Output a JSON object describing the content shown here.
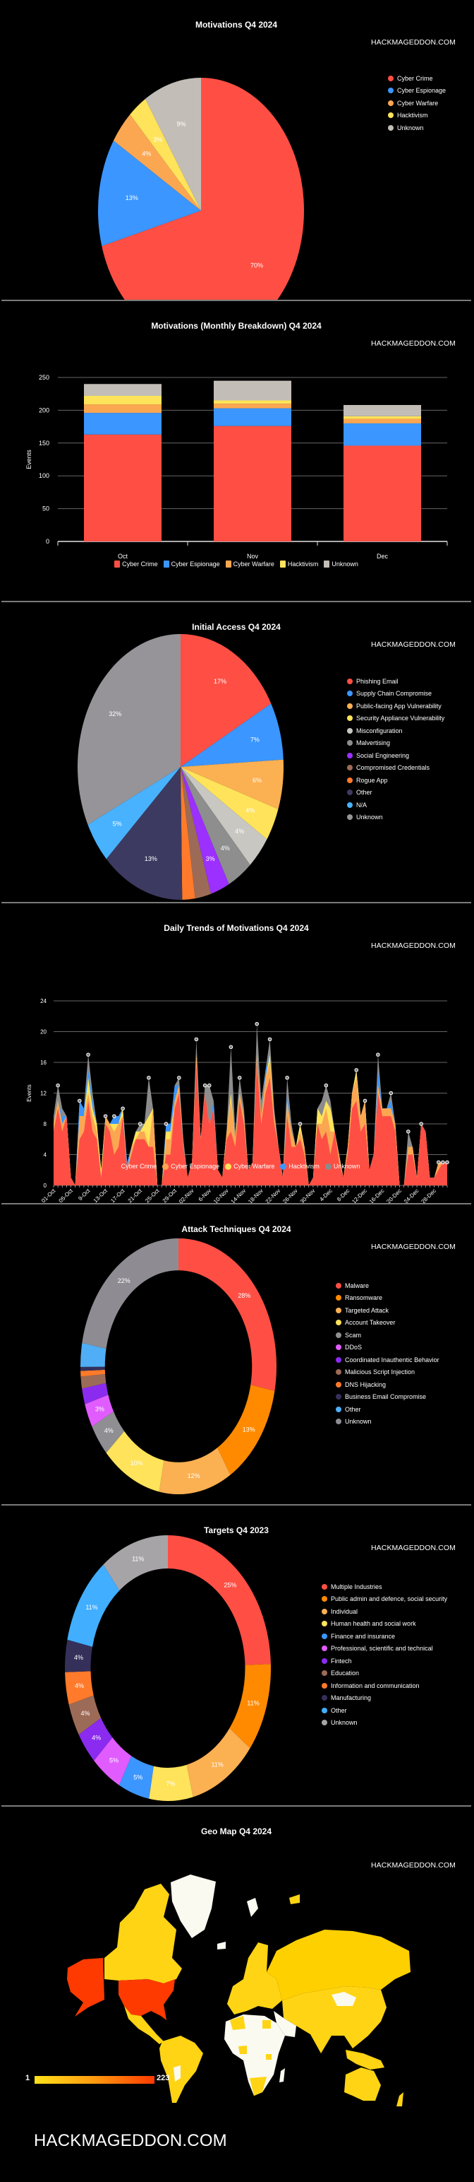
{
  "watermark": "HACKMAGEDDON.COM",
  "footer": {
    "brand": "HACKMAGEDDON.COM"
  },
  "chart_data": [
    {
      "id": "motivations",
      "type": "pie",
      "title": "Motivations Q4 2024",
      "legend_position": "right",
      "labels": [
        "Cyber Crime",
        "Cyber Espionage",
        "Cyber Warfare",
        "Hacktivism",
        "Unknown"
      ],
      "values": [
        70,
        13,
        4,
        3,
        9
      ],
      "value_labels": [
        "70%",
        "13%",
        "4%",
        "3%",
        "9%"
      ],
      "colors": [
        "#FF4F44",
        "#3B96FF",
        "#FBA752",
        "#FFE35A",
        "#C2BEB7"
      ]
    },
    {
      "id": "monthly",
      "type": "bar",
      "stacked": true,
      "title": "Motivations (Monthly Breakdown) Q4 2024",
      "xlabel": "",
      "ylabel": "Events",
      "ylim": [
        0,
        250
      ],
      "yticks": [
        0,
        50,
        100,
        150,
        200,
        250
      ],
      "grid": true,
      "legend_position": "bottom",
      "categories": [
        "Oct",
        "Nov",
        "Dec"
      ],
      "series": [
        {
          "name": "Cyber Crime",
          "color": "#FF4F44",
          "values": [
            163,
            176,
            146
          ]
        },
        {
          "name": "Cyber Espionage",
          "color": "#3B96FF",
          "values": [
            33,
            27,
            34
          ]
        },
        {
          "name": "Cyber Warfare",
          "color": "#FBA752",
          "values": [
            13,
            7,
            7
          ]
        },
        {
          "name": "Hacktivism",
          "color": "#FFE35A",
          "values": [
            13,
            5,
            4
          ]
        },
        {
          "name": "Unknown",
          "color": "#C2BEB7",
          "values": [
            18,
            30,
            17
          ]
        }
      ]
    },
    {
      "id": "initial_access",
      "type": "pie",
      "title": "Initial Access Q4 2024",
      "legend_position": "right",
      "labels": [
        "Phishing Email",
        "Supply Chain Compromise",
        "Public-facing App Vulnerability",
        "Security Appliance Vulnerability",
        "Misconfiguration",
        "Malvertising",
        "Social Engineering",
        "Compromised Credentials",
        "Rogue App",
        "Other",
        "N/A",
        "Unknown"
      ],
      "values": [
        17,
        7,
        6,
        4,
        4,
        4,
        3,
        2.5,
        2,
        13,
        5,
        32
      ],
      "value_labels": [
        "17%",
        "7%",
        "6%",
        "4%",
        "4%",
        "4%",
        "3%",
        "",
        "",
        "13%",
        "5%",
        "32%"
      ],
      "colors": [
        "#FF4F44",
        "#3B96FF",
        "#FBB052",
        "#FFE35A",
        "#C9C7C2",
        "#8E8E8E",
        "#9B30FF",
        "#9C6B57",
        "#FF7A2A",
        "#3C3A60",
        "#48B2FF",
        "#969498"
      ]
    },
    {
      "id": "daily",
      "type": "area",
      "stacked": true,
      "title": "Daily Trends of Motivations Q4 2024",
      "xlabel": "",
      "ylabel": "Events",
      "ylim": [
        0,
        24
      ],
      "yticks": [
        0,
        4,
        8,
        12,
        16,
        20,
        24
      ],
      "grid": true,
      "legend_position": "bottom",
      "x_tick_labels": [
        "01-Oct",
        "05-Oct",
        "9-Oct",
        "13-Oct",
        "17-Oct",
        "21-Oct",
        "25-Oct",
        "29-Oct",
        "02-Nov",
        "6-Nov",
        "10-Nov",
        "14-Nov",
        "18-Nov",
        "22-Nov",
        "26-Nov",
        "30-Nov",
        "4-Dec",
        "8-Dec",
        "12-Dec",
        "16-Dec",
        "20-Dec",
        "24-Dec",
        "28-Dec"
      ],
      "x_tick_every": 4,
      "days": 92,
      "series": [
        {
          "name": "Cyber Crime",
          "color": "#FF4F44",
          "values": [
            7,
            10,
            7,
            9,
            1,
            0,
            6,
            7,
            11,
            7,
            6,
            1,
            8,
            7,
            4,
            5,
            9,
            2,
            4,
            6,
            6,
            6,
            5,
            5,
            0,
            0,
            4,
            4,
            10,
            12,
            5,
            1,
            3,
            16,
            6,
            12,
            8,
            10,
            2,
            1,
            6,
            7,
            5,
            11,
            8,
            2,
            3,
            16,
            8,
            12,
            14,
            8,
            5,
            1,
            9,
            5,
            5,
            6,
            4,
            0,
            1,
            8,
            6,
            7,
            4,
            7,
            3,
            1,
            4,
            10,
            11,
            7,
            8,
            2,
            4,
            12,
            9,
            9,
            9,
            7,
            0,
            0,
            4,
            4,
            1,
            8,
            7,
            1,
            1,
            2,
            3,
            3
          ]
        },
        {
          "name": "Cyber Espionage",
          "color": "#FBA752",
          "values": [
            1,
            1,
            1,
            0,
            0,
            0,
            3,
            2,
            1,
            2,
            1,
            0,
            1,
            1,
            3,
            3,
            0,
            0,
            1,
            0,
            1,
            1,
            0,
            5,
            0,
            0,
            2,
            2,
            1,
            1,
            0,
            0,
            0,
            1,
            0,
            0,
            0,
            0,
            0,
            0,
            1,
            4,
            1,
            1,
            1,
            0,
            0,
            1,
            1,
            2,
            2,
            1,
            0,
            0,
            2,
            2,
            0,
            1,
            1,
            0,
            0,
            0,
            2,
            3,
            3,
            0,
            1,
            0,
            1,
            2,
            3,
            2,
            3,
            0,
            0,
            1,
            1,
            1,
            1,
            1,
            0,
            0,
            1,
            1,
            0,
            0,
            0,
            0,
            0,
            1,
            0,
            0
          ]
        },
        {
          "name": "Cyber Warfare",
          "color": "#FFE35A",
          "values": [
            0,
            0,
            0,
            0,
            0,
            0,
            0,
            0,
            2,
            1,
            1,
            1,
            0,
            0,
            1,
            0,
            1,
            0,
            0,
            1,
            0,
            1,
            4,
            0,
            0,
            0,
            1,
            1,
            0,
            0,
            0,
            0,
            0,
            0,
            0,
            0,
            0,
            0,
            0,
            0,
            0,
            1,
            0,
            0,
            0,
            0,
            0,
            0,
            0,
            0,
            1,
            0,
            0,
            0,
            0,
            0,
            0,
            1,
            0,
            0,
            0,
            2,
            1,
            1,
            3,
            0,
            0,
            0,
            0,
            0,
            1,
            0,
            0,
            0,
            0,
            0,
            0,
            0,
            0,
            0,
            0,
            0,
            0,
            0,
            0,
            0,
            0,
            0,
            0,
            0,
            0,
            0
          ]
        },
        {
          "name": "Hacktivism",
          "color": "#3B96FF",
          "values": [
            0,
            0,
            1,
            0,
            0,
            0,
            2,
            1,
            1,
            1,
            0,
            0,
            0,
            0,
            1,
            1,
            0,
            1,
            0,
            0,
            0,
            0,
            0,
            0,
            0,
            0,
            1,
            1,
            2,
            0,
            0,
            0,
            0,
            0,
            0,
            0,
            0,
            1,
            0,
            0,
            0,
            0,
            0,
            0,
            0,
            0,
            0,
            0,
            0,
            1,
            0,
            0,
            0,
            0,
            1,
            0,
            0,
            0,
            0,
            0,
            0,
            0,
            0,
            0,
            0,
            0,
            0,
            0,
            0,
            0,
            0,
            0,
            0,
            0,
            0,
            2,
            0,
            0,
            1,
            0,
            0,
            0,
            0,
            0,
            0,
            0,
            0,
            0,
            0,
            0,
            0,
            0
          ]
        },
        {
          "name": "Unknown",
          "color": "#8C8C8C",
          "values": [
            1,
            2,
            1,
            0,
            0,
            0,
            0,
            0,
            2,
            1,
            0,
            0,
            0,
            0,
            0,
            0,
            0,
            0,
            0,
            0,
            1,
            0,
            5,
            0,
            0,
            0,
            0,
            0,
            0,
            1,
            1,
            0,
            0,
            2,
            0,
            1,
            5,
            0,
            0,
            0,
            0,
            6,
            1,
            2,
            1,
            0,
            0,
            4,
            2,
            0,
            2,
            1,
            0,
            0,
            2,
            1,
            0,
            0,
            0,
            0,
            0,
            0,
            2,
            2,
            1,
            0,
            0,
            0,
            0,
            0,
            0,
            0,
            0,
            0,
            0,
            2,
            0,
            0,
            1,
            0,
            0,
            0,
            2,
            0,
            0,
            0,
            0,
            0,
            0,
            0,
            0,
            0
          ]
        }
      ]
    },
    {
      "id": "attack_techniques",
      "type": "pie",
      "donut": true,
      "title": "Attack Techniques Q4 2024",
      "legend_position": "right",
      "labels": [
        "Malware",
        "Ransomware",
        "Targeted Attack",
        "Account Takeover",
        "Scam",
        "DDoS",
        "Coordinated Inauthentic Behavior",
        "Malicious Script Injection",
        "DNS Hijacking",
        "Business Email Compromise",
        "Other",
        "Unknown"
      ],
      "values": [
        28,
        13,
        12,
        10,
        4,
        3,
        2,
        1.5,
        0.7,
        0.5,
        3,
        22
      ],
      "value_labels": [
        "28%",
        "13%",
        "12%",
        "10%",
        "4%",
        "3%",
        "",
        "",
        "",
        "",
        "",
        "22%"
      ],
      "colors": [
        "#FF4F44",
        "#FF8A00",
        "#FBB052",
        "#FFE35A",
        "#8F8F93",
        "#E15CFF",
        "#8B2BEF",
        "#9C6B57",
        "#FF7A2A",
        "#34305A",
        "#4FAEF5",
        "#8E8C92"
      ]
    },
    {
      "id": "targets",
      "type": "pie",
      "donut": true,
      "title": "Targets Q4 2023",
      "legend_position": "right",
      "labels": [
        "Multiple Industries",
        "Public admin and defence, social security",
        "Individual",
        "Human health and social work",
        "Finance and insurance",
        "Professional, scientific and technical",
        "Fintech",
        "Education",
        "Information and communication",
        "Manufacturing",
        "Other",
        "Unknown"
      ],
      "values": [
        25,
        11,
        11,
        7,
        5,
        5,
        4,
        4,
        4,
        4,
        11,
        11
      ],
      "value_labels": [
        "25%",
        "11%",
        "11%",
        "7%",
        "5%",
        "5%",
        "4%",
        "4%",
        "4%",
        "4%",
        "11%",
        "11%"
      ],
      "colors": [
        "#FF4F44",
        "#FF8A00",
        "#FBB052",
        "#FFE35A",
        "#3B96FF",
        "#E15CFF",
        "#8B2BEF",
        "#9C6B57",
        "#FF7A2A",
        "#34305A",
        "#41AEFF",
        "#A7A4A8"
      ]
    },
    {
      "id": "geo",
      "type": "heatmap",
      "title": "Geo Map Q4 2024",
      "scale_min": 1,
      "scale_max": 223,
      "scale_min_label": "1",
      "scale_max_label": "223",
      "scale_colors": [
        "#FFE11A",
        "#FF3A00"
      ],
      "no_data_color": "#FAFAF0",
      "highlighted": [
        {
          "country": "United States",
          "level": "max"
        }
      ]
    }
  ]
}
